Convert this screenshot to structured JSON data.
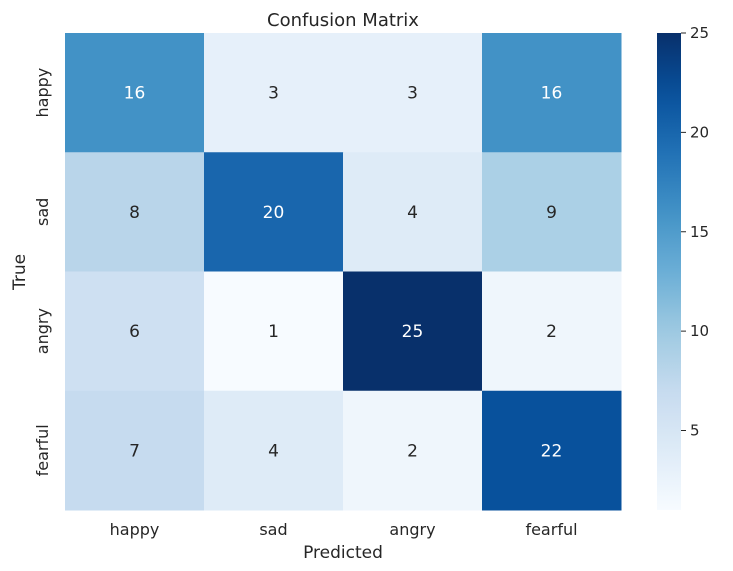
{
  "chart_data": {
    "type": "heatmap",
    "title": "Confusion Matrix",
    "xlabel": "Predicted",
    "ylabel": "True",
    "x_categories": [
      "happy",
      "sad",
      "angry",
      "fearful"
    ],
    "y_categories": [
      "happy",
      "sad",
      "angry",
      "fearful"
    ],
    "values": [
      [
        16,
        3,
        3,
        16
      ],
      [
        8,
        20,
        4,
        9
      ],
      [
        6,
        1,
        25,
        2
      ],
      [
        7,
        4,
        2,
        22
      ]
    ],
    "colorscale": "Blues",
    "vmin": 1,
    "vmax": 25,
    "colorbar_ticks": [
      5,
      10,
      15,
      20,
      25
    ],
    "colors": {
      "low": "#f7fbff",
      "high": "#08306b",
      "text_light": "#ffffff",
      "text_dark": "#262626"
    }
  }
}
